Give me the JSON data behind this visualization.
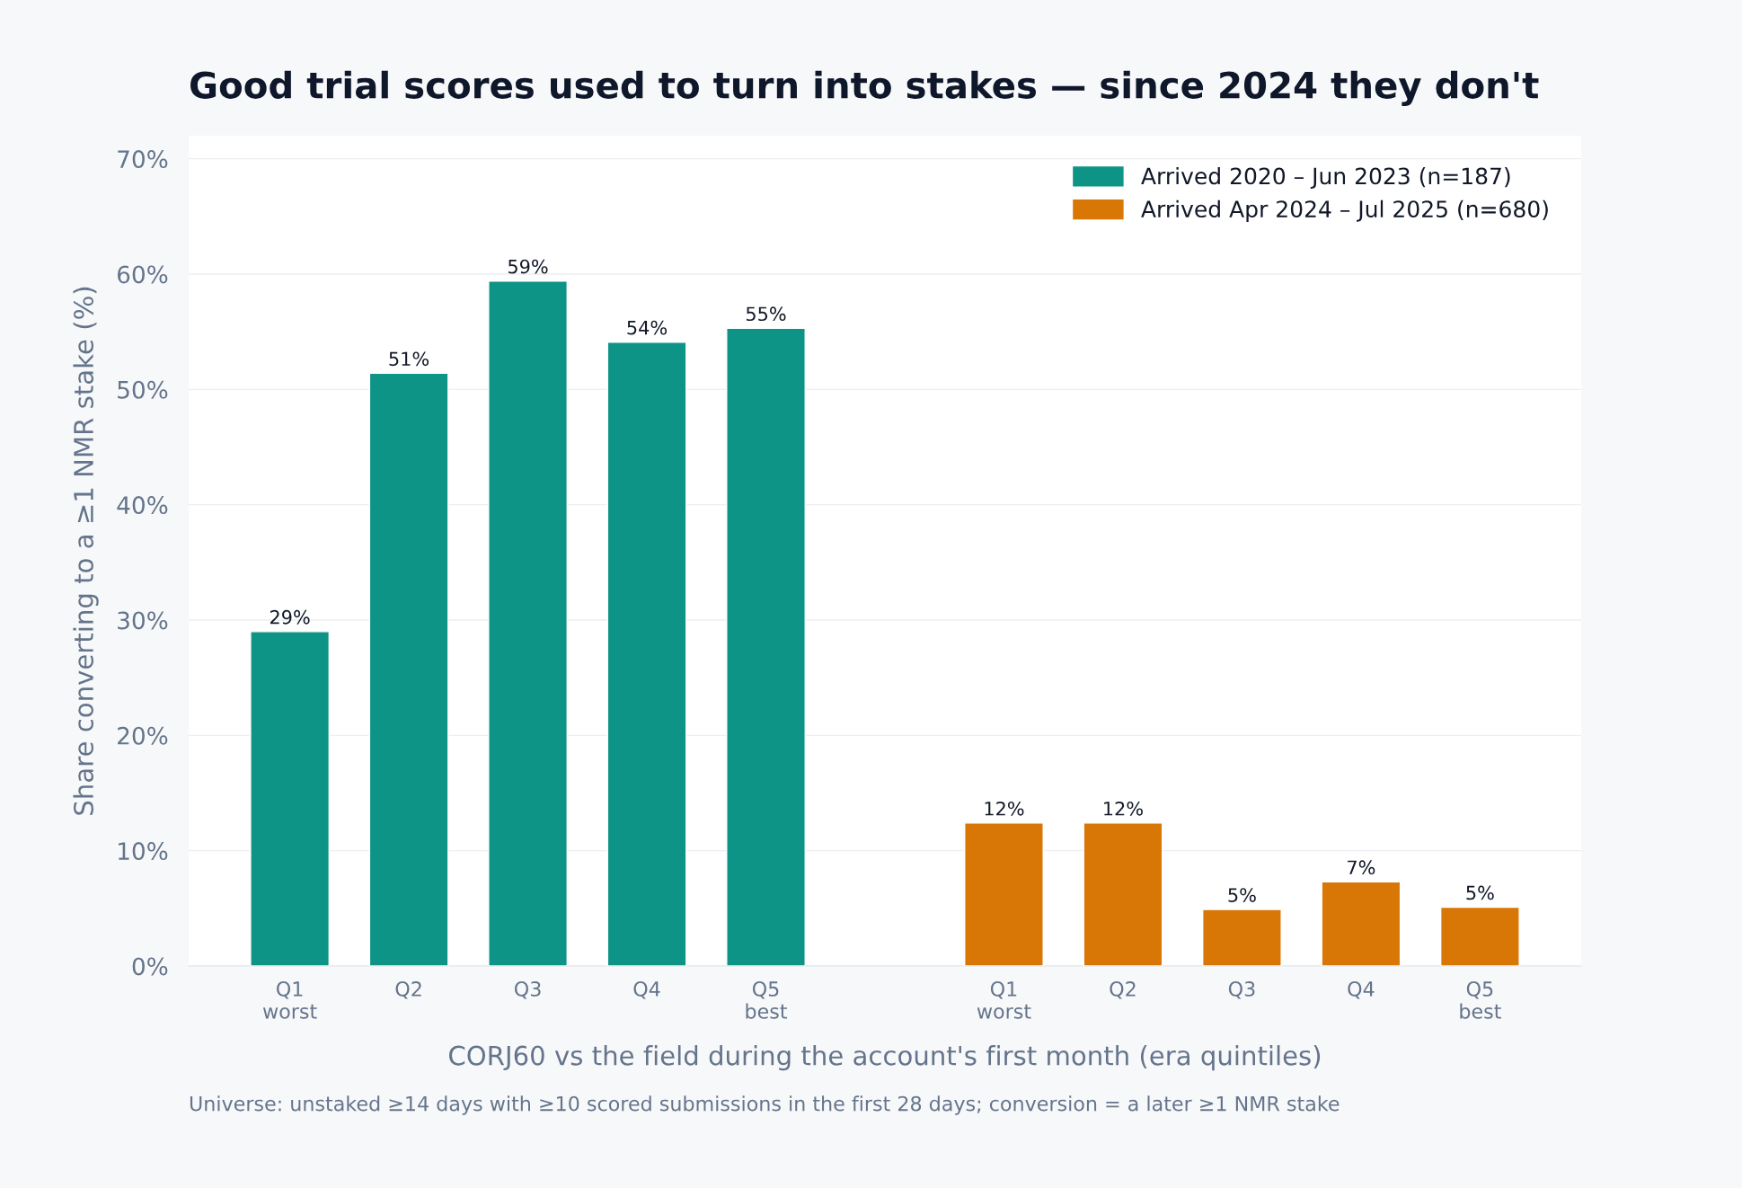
{
  "chart_data": {
    "type": "bar",
    "title": "Good trial scores used to turn into stakes — since 2024 they don't",
    "xlabel": "CORJ60 vs the field during the account's first month (era quintiles)",
    "ylabel": "Share converting to a ≥1 NMR stake (%)",
    "categories": [
      "Q1\nworst",
      "Q2",
      "Q3",
      "Q4",
      "Q5\nbest",
      null,
      "Q1\nworst",
      "Q2",
      "Q3",
      "Q4",
      "Q5\nbest"
    ],
    "series": [
      {
        "name": "Arrived 2020 – Jun 2023 (n=187)",
        "color": "#0e9486",
        "values": [
          29.0,
          51.4,
          59.4,
          54.1,
          55.3,
          null,
          null,
          null,
          null,
          null,
          null
        ],
        "value_labels": [
          "29%",
          "51%",
          "59%",
          "54%",
          "55%",
          null,
          null,
          null,
          null,
          null,
          null
        ]
      },
      {
        "name": "Arrived Apr 2024 – Jul 2025 (n=680)",
        "color": "#d97706",
        "values": [
          null,
          null,
          null,
          null,
          null,
          null,
          12.4,
          12.4,
          4.9,
          7.3,
          5.1
        ],
        "value_labels": [
          null,
          null,
          null,
          null,
          null,
          null,
          "12%",
          "12%",
          "5%",
          "7%",
          "5%"
        ]
      }
    ],
    "ylim": [
      0,
      72
    ],
    "yticks": [
      {
        "value": 0,
        "label": "0%"
      },
      {
        "value": 10,
        "label": "10%"
      },
      {
        "value": 20,
        "label": "20%"
      },
      {
        "value": 30,
        "label": "30%"
      },
      {
        "value": 40,
        "label": "40%"
      },
      {
        "value": 50,
        "label": "50%"
      },
      {
        "value": 60,
        "label": "60%"
      },
      {
        "value": 70,
        "label": "70%"
      }
    ],
    "grid": "y",
    "legend": "top right",
    "annotations": [
      "Universe: unstaked ≥14 days with ≥10 scored submissions in the first 28 days; conversion = a later ≥1 NMR stake"
    ]
  }
}
